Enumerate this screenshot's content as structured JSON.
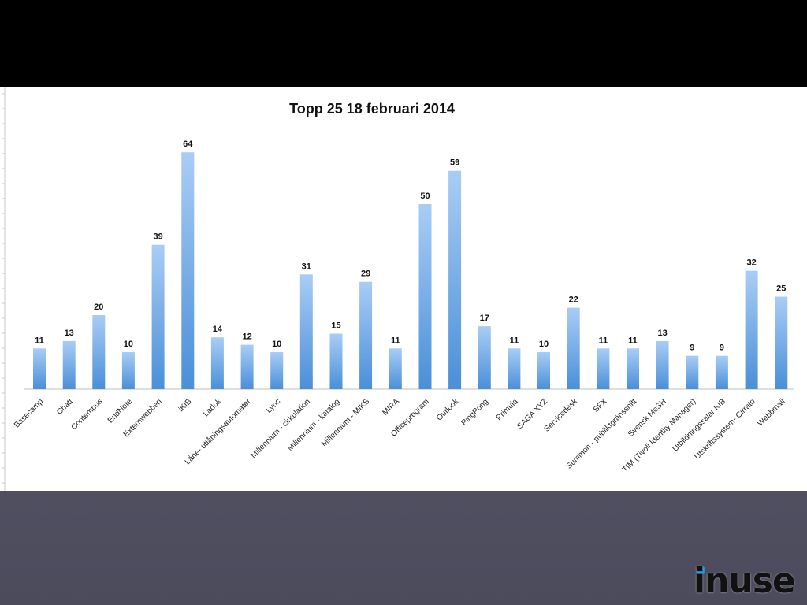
{
  "colors": {
    "bar_top": "#a9cdf5",
    "bar_bottom": "#4a8fd8",
    "accent_dot": "#1a8fd8"
  },
  "logo": {
    "text": "inuse",
    "icon": "inuse-logo-icon"
  },
  "chart_data": {
    "type": "bar",
    "title": "Topp 25 18 februari 2014",
    "xlabel": "",
    "ylabel": "",
    "ylim": [
      0,
      70
    ],
    "grid": false,
    "legend": "none",
    "categories": [
      "Basecamp",
      "Chatt",
      "Contempus",
      "EndNote",
      "Externwebben",
      "iKIB",
      "Ladok",
      "Låne- utlåningsautomater",
      "Lync",
      "Millennium - cirkulation",
      "Millennium - katalog",
      "Millennium - MIKS",
      "MIRA",
      "Officeprogram",
      "Outlook",
      "PingPong",
      "Primula",
      "SAGA XYZ",
      "Servicedesk",
      "SFX",
      "Summon - publiktgränssnitt",
      "Svensk MeSH",
      "TIM (Tivoli Identity Manager)",
      "Utbildningssalar KIB",
      "Utskriftssystem- Cirrato",
      "Webbmail"
    ],
    "values": [
      11,
      13,
      20,
      10,
      39,
      64,
      14,
      12,
      10,
      31,
      15,
      29,
      11,
      50,
      59,
      17,
      11,
      10,
      22,
      11,
      11,
      13,
      9,
      9,
      32,
      25
    ],
    "value_labels": [
      "11",
      "13",
      "20",
      "10",
      "39",
      "64",
      "14",
      "12",
      "10",
      "31",
      "15",
      "29",
      "11",
      "50",
      "59",
      "17",
      "11",
      "10",
      "22",
      "11",
      "11",
      "13",
      "9",
      "9",
      "32",
      "25"
    ]
  }
}
